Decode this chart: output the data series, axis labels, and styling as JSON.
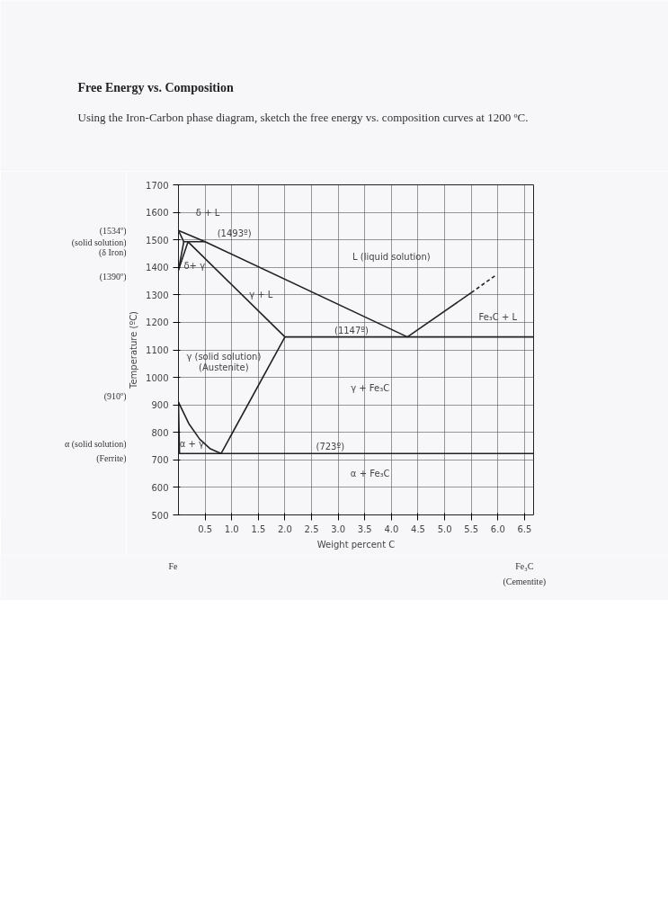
{
  "chart_data": {
    "type": "line",
    "title": "Free Energy vs. Composition",
    "subtitle": "Using the Iron-Carbon phase diagram, sketch the free energy vs. composition curves at 1200 ºC.",
    "xlabel": "Weight percent C",
    "ylabel": "Temperature (ºC)",
    "xlim": [
      0,
      6.67
    ],
    "ylim": [
      500,
      1700
    ],
    "xticks": [
      0.5,
      {
        "value": 1,
        "label": "1.0"
      },
      1.5,
      {
        "value": 2,
        "label": "2.0"
      },
      2.5,
      {
        "value": 3,
        "label": "3.0"
      },
      3.5,
      {
        "value": 4,
        "label": "4.0"
      },
      4.5,
      {
        "value": 5,
        "label": "5.0"
      },
      5.5,
      {
        "value": 6,
        "label": "6.0"
      },
      6.5
    ],
    "yticks": [
      500,
      600,
      700,
      800,
      900,
      1000,
      1100,
      1200,
      1300,
      1400,
      1500,
      1600,
      1700
    ],
    "grid": true,
    "marker": "none",
    "line_style": "solid",
    "series": [
      {
        "color": "#222222",
        "x": [
          0,
          0.5,
          4.3,
          5.5
        ],
        "values": [
          1534,
          1493,
          1147,
          1308
        ]
      },
      {
        "color": "#222222",
        "x": [
          5.5,
          5.95
        ],
        "values": [
          1308,
          1370
        ],
        "line_style": "dashed"
      },
      {
        "color": "#222222",
        "x": [
          0,
          0.1,
          0.5
        ],
        "values": [
          1534,
          1493,
          1493
        ]
      },
      {
        "color": "#222222",
        "x": [
          0,
          0.1
        ],
        "values": [
          1390,
          1493
        ]
      },
      {
        "color": "#222222",
        "x": [
          0,
          0.18,
          2.0,
          6.67
        ],
        "values": [
          1390,
          1493,
          1147,
          1147
        ]
      },
      {
        "color": "#222222",
        "x": [
          2.0,
          0.8
        ],
        "values": [
          1147,
          723
        ]
      },
      {
        "color": "#222222",
        "x": [
          0,
          0.2,
          0.4,
          0.6,
          0.8
        ],
        "values": [
          910,
          830,
          775,
          740,
          723
        ]
      },
      {
        "color": "#222222",
        "x": [
          0,
          0.02,
          6.67
        ],
        "values": [
          910,
          723,
          723
        ]
      }
    ],
    "annotations": [
      "(1534º)",
      "(1390º)",
      "(910º)",
      "(solid solution)",
      "(δ Iron)",
      "α (solid solution)",
      "(Ferrite)",
      "δ + L",
      "(1493º)",
      "δ+ γ",
      "γ + L",
      "L (liquid solution)",
      "Fe₃C + L",
      {
        "text": "(1147º)",
        "x": 3.25,
        "y": 1147
      },
      "γ (solid solution)",
      "(Austenite)",
      "γ + Fe₃C",
      "α + γ",
      {
        "text": "(723º)",
        "x": 2.85,
        "y": 723
      },
      "α + Fe₃C",
      "Fe",
      "Fe₃C",
      "(Cementite)"
    ]
  }
}
